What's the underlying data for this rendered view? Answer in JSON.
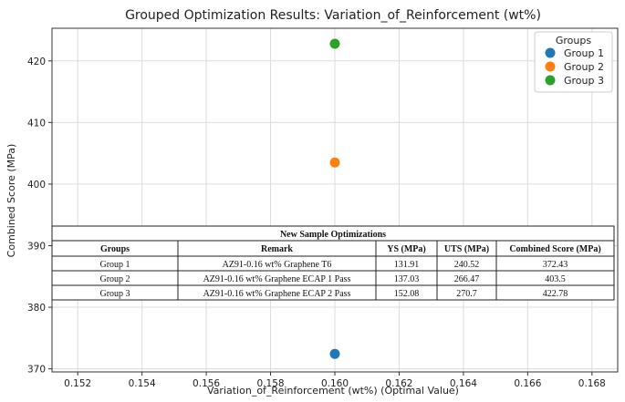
{
  "chart_data": {
    "type": "scatter",
    "title": "Grouped Optimization Results: Variation_of_Reinforcement (wt%)",
    "xlabel": "Variation_of_Reinforcement (wt%) (Optimal Value)",
    "ylabel": "Combined Score (MPa)",
    "xlim": [
      0.1512,
      0.1688
    ],
    "ylim": [
      369.5,
      425.3
    ],
    "xticks": [
      "0.152",
      "0.154",
      "0.156",
      "0.158",
      "0.160",
      "0.162",
      "0.164",
      "0.166",
      "0.168"
    ],
    "yticks": [
      "370",
      "380",
      "390",
      "400",
      "410",
      "420"
    ],
    "grid": true,
    "legend_position": "top-right",
    "legend_title": "Groups",
    "series": [
      {
        "name": "Group 1",
        "color": "#1f77b4",
        "points": [
          {
            "x": 0.16,
            "y": 372.43
          }
        ]
      },
      {
        "name": "Group 2",
        "color": "#ff7f0e",
        "points": [
          {
            "x": 0.16,
            "y": 403.5
          }
        ]
      },
      {
        "name": "Group 3",
        "color": "#2ca02c",
        "points": [
          {
            "x": 0.16,
            "y": 422.78
          }
        ]
      }
    ],
    "table": {
      "title": "New Sample Optimizations",
      "columns": [
        "Groups",
        "Remark",
        "YS (MPa)",
        "UTS (MPa)",
        "Combined Score (MPa)"
      ],
      "rows": [
        [
          "Group 1",
          "AZ91-0.16 wt% Graphene T6",
          "131.91",
          "240.52",
          "372.43"
        ],
        [
          "Group 2",
          "AZ91-0.16 wt% Graphene ECAP 1 Pass",
          "137.03",
          "266.47",
          "403.5"
        ],
        [
          "Group 3",
          "AZ91-0.16 wt% Graphene ECAP 2 Pass",
          "152.08",
          "270.7",
          "422.78"
        ]
      ]
    }
  }
}
